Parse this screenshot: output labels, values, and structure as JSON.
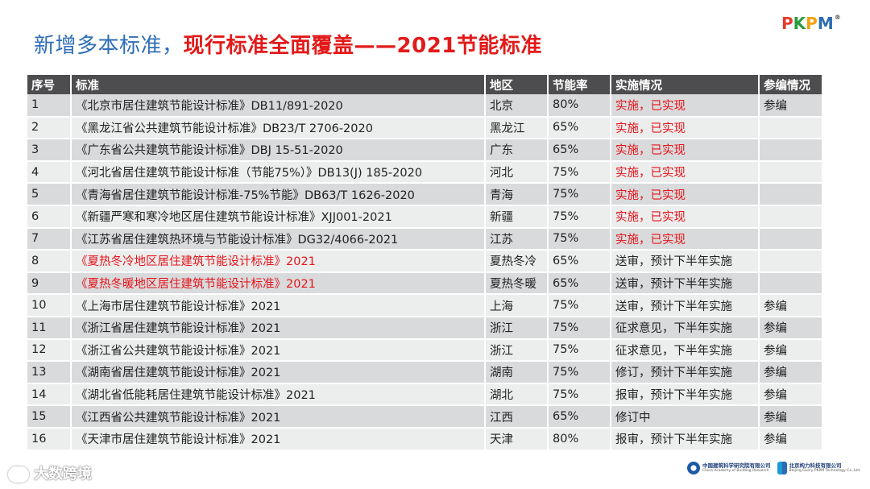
{
  "title": {
    "part1": "新增多本标准，",
    "part2": "现行标准全面覆盖——2021节能标准"
  },
  "logo": {
    "letters": [
      "P",
      "K",
      "P",
      "M"
    ],
    "colors": [
      "#e53b2c",
      "#2a9b3f",
      "#f2a20e",
      "#2b6cb3"
    ],
    "registered": "®"
  },
  "table": {
    "headers": [
      "序号",
      "标准",
      "地区",
      "节能率",
      "实施情况",
      "参编情况"
    ],
    "rows": [
      {
        "no": "1",
        "std": "《北京市居住建筑节能设计标准》DB11/891-2020",
        "region": "北京",
        "rate": "80%",
        "status": "实施，已实现",
        "participation": "参编",
        "std_red": false,
        "status_red": true
      },
      {
        "no": "2",
        "std": "《黑龙江省公共建筑节能设计标准》DB23/T 2706-2020",
        "region": "黑龙江",
        "rate": "65%",
        "status": "实施，已实现",
        "participation": "",
        "std_red": false,
        "status_red": true
      },
      {
        "no": "3",
        "std": "《广东省公共建筑节能设计标准》DBJ 15-51-2020",
        "region": "广东",
        "rate": "65%",
        "status": "实施，已实现",
        "participation": "",
        "std_red": false,
        "status_red": true
      },
      {
        "no": "4",
        "std": "《河北省居住建筑节能设计标准（节能75%）》DB13(J) 185-2020",
        "region": "河北",
        "rate": "75%",
        "status": "实施，已实现",
        "participation": "",
        "std_red": false,
        "status_red": true
      },
      {
        "no": "5",
        "std": "《青海省居住建筑节能设计标准-75%节能》DB63/T 1626-2020",
        "region": "青海",
        "rate": "75%",
        "status": "实施，已实现",
        "participation": "",
        "std_red": false,
        "status_red": true
      },
      {
        "no": "6",
        "std": "《新疆严寒和寒冷地区居住建筑节能设计标准》XJJ001-2021",
        "region": "新疆",
        "rate": "75%",
        "status": "实施，已实现",
        "participation": "",
        "std_red": false,
        "status_red": true
      },
      {
        "no": "7",
        "std": "《江苏省居住建筑热环境与节能设计标准》DG32/4066-2021",
        "region": "江苏",
        "rate": "75%",
        "status": "实施，已实现",
        "participation": "",
        "std_red": false,
        "status_red": true
      },
      {
        "no": "8",
        "std": "《夏热冬冷地区居住建筑节能设计标准》2021",
        "region": "夏热冬冷",
        "rate": "65%",
        "status": "送审，预计下半年实施",
        "participation": "",
        "std_red": true,
        "status_red": false
      },
      {
        "no": "9",
        "std": "《夏热冬暖地区居住建筑节能设计标准》2021",
        "region": "夏热冬暖",
        "rate": "65%",
        "status": "送审，预计下半年实施",
        "participation": "",
        "std_red": true,
        "status_red": false
      },
      {
        "no": "10",
        "std": "《上海市居住建筑节能设计标准》2021",
        "region": "上海",
        "rate": "75%",
        "status": "送审，预计下半年实施",
        "participation": "参编",
        "std_red": false,
        "status_red": false
      },
      {
        "no": "11",
        "std": "《浙江省居住建筑节能设计标准》2021",
        "region": "浙江",
        "rate": "75%",
        "status": "征求意见，下半年实施",
        "participation": "参编",
        "std_red": false,
        "status_red": false
      },
      {
        "no": "12",
        "std": "《浙江省公共建筑节能设计标准》2021",
        "region": "浙江",
        "rate": "75%",
        "status": "征求意见，下半年实施",
        "participation": "参编",
        "std_red": false,
        "status_red": false
      },
      {
        "no": "13",
        "std": "《湖南省居住建筑节能设计标准》2021",
        "region": "湖南",
        "rate": "75%",
        "status": "修订，预计下半年实施",
        "participation": "参编",
        "std_red": false,
        "status_red": false
      },
      {
        "no": "14",
        "std": "《湖北省低能耗居住建筑节能设计标准》2021",
        "region": "湖北",
        "rate": "75%",
        "status": "报审，预计下半年实施",
        "participation": "参编",
        "std_red": false,
        "status_red": false
      },
      {
        "no": "15",
        "std": "《江西省公共建筑节能设计标准》2021",
        "region": "江西",
        "rate": "65%",
        "status": "修订中",
        "participation": "参编",
        "std_red": false,
        "status_red": false
      },
      {
        "no": "16",
        "std": "《天津市居住建筑节能设计标准》2021",
        "region": "天津",
        "rate": "80%",
        "status": "报审，预计下半年实施",
        "participation": "参编",
        "std_red": false,
        "status_red": false
      }
    ]
  },
  "watermark": "大数跨境",
  "footer": {
    "org1": "中国建筑科学研究院有限公司",
    "org1_en": "China Academy of Building Research",
    "org2": "北京构力科技有限公司",
    "org2_en": "Beijing GLory PKPM Technology Co.,Ltd."
  }
}
